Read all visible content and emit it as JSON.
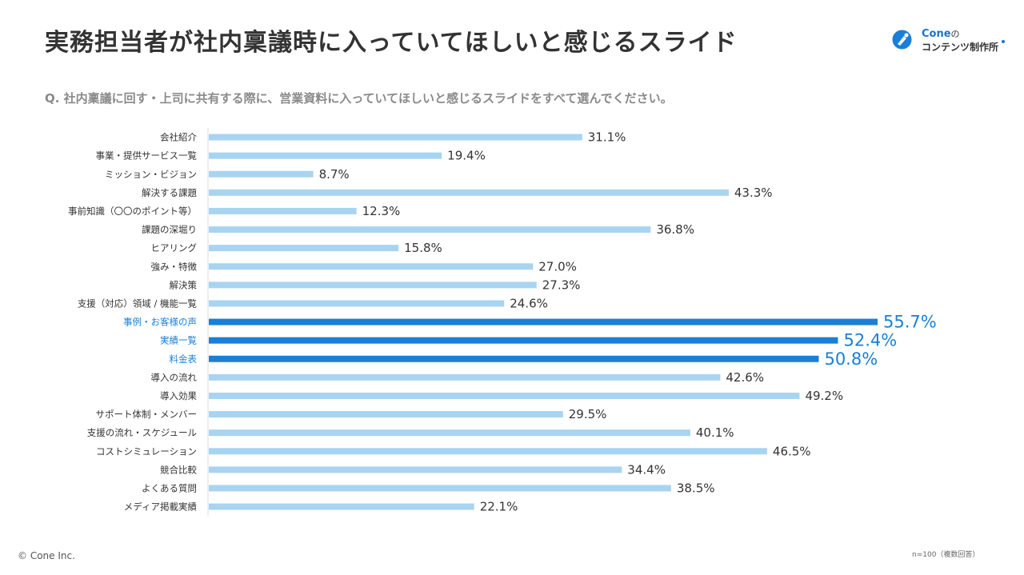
{
  "title": "実務担当者が社内稟議時に入っていてほしいと感じるスライド",
  "logo": {
    "brand": "Cone",
    "particle": "の",
    "line2": "コンテンツ制作所",
    "icon": "cone-pen-icon"
  },
  "question": "Q.  社内稟議に回す・上司に共有する際に、営業資料に入っていてほしいと感じるスライドをすべて選んでください。",
  "footer": {
    "copyright": "© Cone Inc.",
    "note": "n=100（複数回答）"
  },
  "colors": {
    "bar": "#a8d4f2",
    "highlight": "#1a7fd6",
    "text": "#333333",
    "highlight_text": "#1a7fd6",
    "axis": "#dddddd"
  },
  "chart_data": {
    "type": "bar",
    "orientation": "horizontal",
    "categories": [
      "会社紹介",
      "事業・提供サービス一覧",
      "ミッション・ビジョン",
      "解決する課題",
      "事前知識（〇〇のポイント等）",
      "課題の深堀り",
      "ヒアリング",
      "強み・特徴",
      "解決策",
      "支援（対応）領域 / 機能一覧",
      "事例・お客様の声",
      "実績一覧",
      "料金表",
      "導入の流れ",
      "導入効果",
      "サポート体制・メンバー",
      "支援の流れ・スケジュール",
      "コストシミュレーション",
      "競合比較",
      "よくある質問",
      "メディア掲載実績"
    ],
    "values": [
      31.1,
      19.4,
      8.7,
      43.3,
      12.3,
      36.8,
      15.8,
      27.0,
      27.3,
      24.6,
      55.7,
      52.4,
      50.8,
      42.6,
      49.2,
      29.5,
      40.1,
      46.5,
      34.4,
      38.5,
      22.1
    ],
    "labels": [
      "31.1%",
      "19.4%",
      "8.7%",
      "43.3%",
      "12.3%",
      "36.8%",
      "15.8%",
      "27.0%",
      "27.3%",
      "24.6%",
      "55.7%",
      "52.4%",
      "50.8%",
      "42.6%",
      "49.2%",
      "29.5%",
      "40.1%",
      "46.5%",
      "34.4%",
      "38.5%",
      "22.1%"
    ],
    "highlighted": [
      10,
      11,
      12
    ],
    "xlim": [
      0,
      55.7
    ],
    "legend": "none",
    "grid": false
  }
}
